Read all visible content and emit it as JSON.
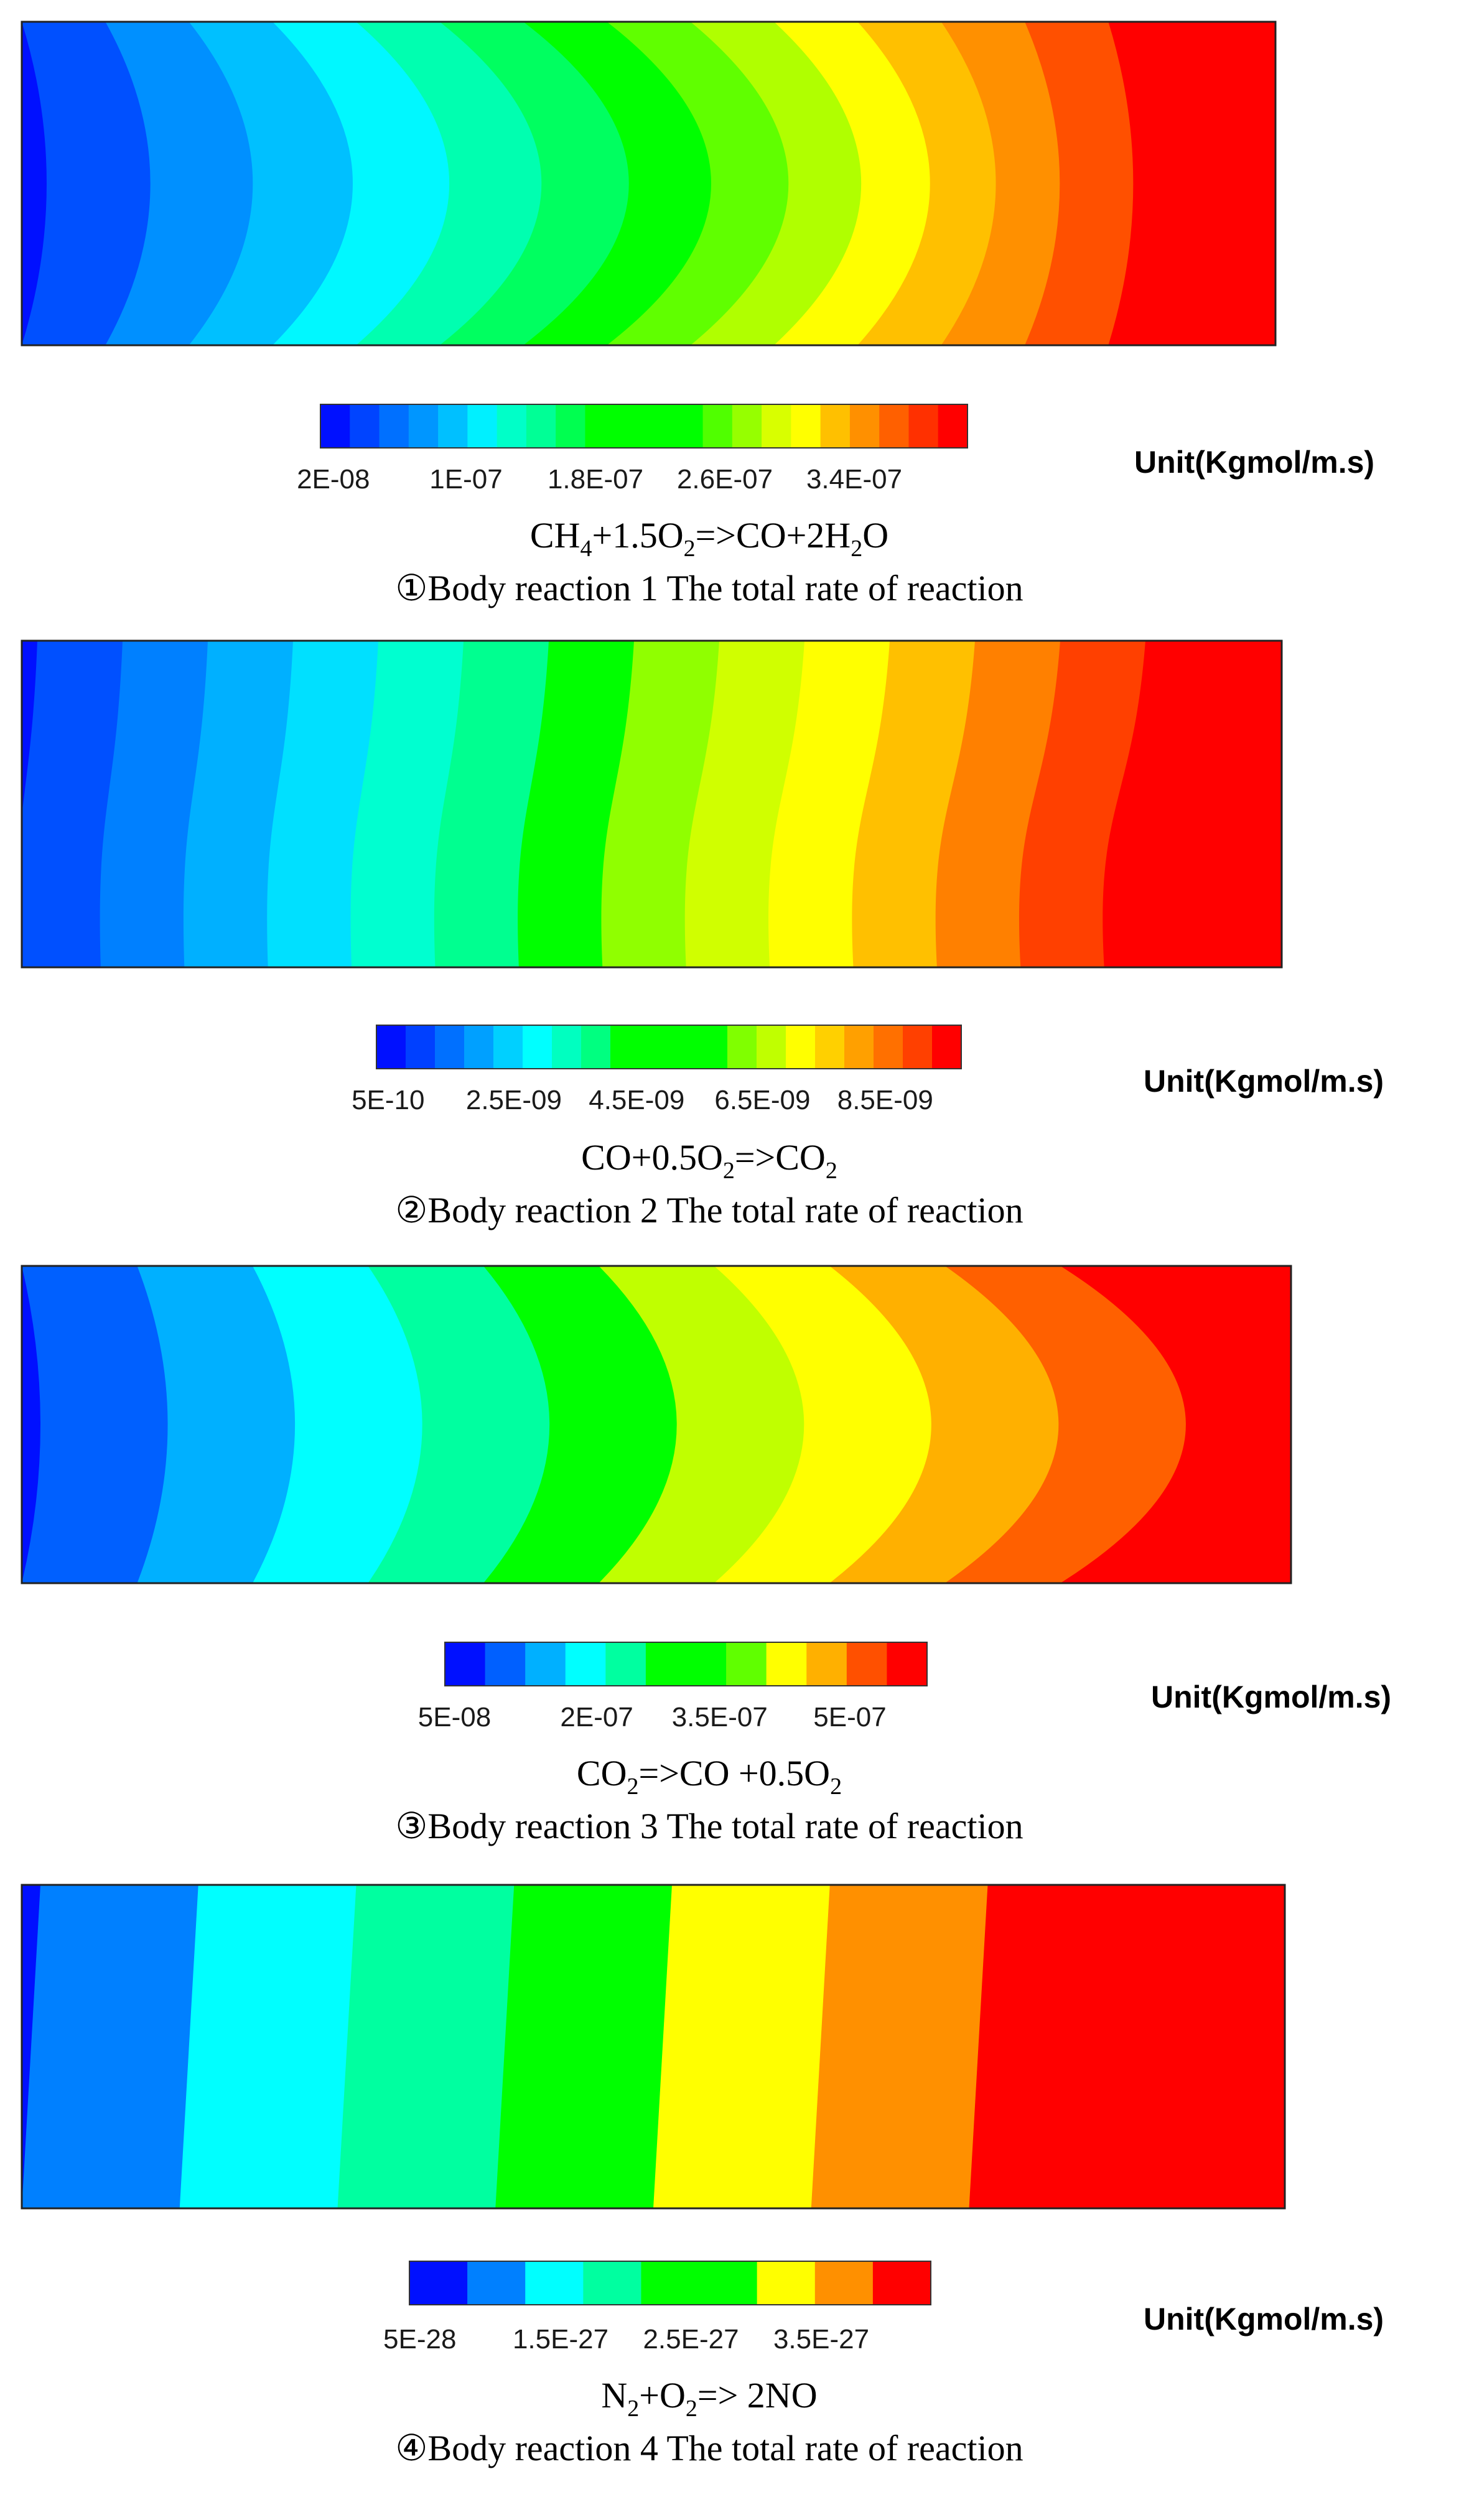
{
  "panels": [
    {
      "id": 1,
      "equation": [
        "CH",
        {
          "sub": "4"
        },
        "+1.5O",
        {
          "sub": "2"
        },
        "=>CO+2H",
        {
          "sub": "2"
        },
        "O"
      ],
      "caption": "①Body reaction 1 The total rate of reaction",
      "unit": "Unit(Kgmol/m.s)",
      "legend_colors": [
        "#0010ff",
        "#0044ff",
        "#0070ff",
        "#0096ff",
        "#00c0ff",
        "#00f0ff",
        "#00ffc8",
        "#00ff96",
        "#00ff50",
        "#00ff00",
        "#00ff00",
        "#00ff00",
        "#00ff00",
        "#50ff00",
        "#96ff00",
        "#d8ff00",
        "#ffff00",
        "#ffc000",
        "#ff9000",
        "#ff6000",
        "#ff3000",
        "#ff0000"
      ],
      "tick_labels": [
        "2E-08",
        "1E-07",
        "1.8E-07",
        "2.6E-07",
        "3.4E-07"
      ],
      "field": {
        "type": "parabolic-bands",
        "colors": [
          "#0010ff",
          "#0050ff",
          "#0090ff",
          "#00c0ff",
          "#00f8ff",
          "#00ffb0",
          "#00ff60",
          "#00ff00",
          "#60ff00",
          "#b0ff00",
          "#ffff00",
          "#ffc000",
          "#ff9000",
          "#ff5000",
          "#ff0000"
        ]
      }
    },
    {
      "id": 2,
      "equation": [
        "CO+0.5O",
        {
          "sub": "2"
        },
        "=>CO",
        {
          "sub": "2"
        }
      ],
      "caption": "②Body reaction 2 The total rate of reaction",
      "unit": "Unit(Kgmol/m.s)",
      "legend_colors": [
        "#0010ff",
        "#0040ff",
        "#0070ff",
        "#00a0ff",
        "#00d0ff",
        "#00ffff",
        "#00ffc0",
        "#00ff80",
        "#00ff00",
        "#00ff00",
        "#00ff00",
        "#00ff00",
        "#80ff00",
        "#c0ff00",
        "#ffff00",
        "#ffd000",
        "#ffa000",
        "#ff7000",
        "#ff4000",
        "#ff0000"
      ],
      "tick_labels": [
        "5E-10",
        "2.5E-09",
        "4.5E-09",
        "6.5E-09",
        "8.5E-09"
      ],
      "field": {
        "type": "vertical-bands",
        "colors": [
          "#0010ff",
          "#0050ff",
          "#0080ff",
          "#00b0ff",
          "#00e0ff",
          "#00ffd0",
          "#00ff90",
          "#00ff00",
          "#90ff00",
          "#d0ff00",
          "#ffff00",
          "#ffc000",
          "#ff8000",
          "#ff4000",
          "#ff0000"
        ]
      }
    },
    {
      "id": 3,
      "equation": [
        "CO",
        {
          "sub": "2"
        },
        "=>CO +0.5O",
        {
          "sub": "2"
        }
      ],
      "caption": "③Body reaction 3 The total rate of reaction",
      "unit": "Unit(Kgmol/m.s)",
      "legend_colors": [
        "#0010ff",
        "#0060ff",
        "#00b0ff",
        "#00ffff",
        "#00ffa0",
        "#00ff00",
        "#00ff00",
        "#60ff00",
        "#ffff00",
        "#ffb000",
        "#ff5000",
        "#ff0000"
      ],
      "tick_labels": [
        "5E-08",
        "2E-07",
        "3.5E-07",
        "5E-07"
      ],
      "field": {
        "type": "wedge-bands",
        "colors": [
          "#0010ff",
          "#0060ff",
          "#00b0ff",
          "#00ffff",
          "#00ffa0",
          "#00ff00",
          "#c0ff00",
          "#ffff00",
          "#ffb000",
          "#ff6000",
          "#ff0000"
        ]
      }
    },
    {
      "id": 4,
      "equation": [
        "N",
        {
          "sub": "2"
        },
        "+O",
        {
          "sub": "2"
        },
        "=> 2NO"
      ],
      "caption": "④Body reaction 4 The total rate of reaction",
      "unit": "Unit(Kgmol/m.s)",
      "legend_colors": [
        "#0010ff",
        "#0080ff",
        "#00ffff",
        "#00ffa0",
        "#00ff00",
        "#00ff00",
        "#ffff00",
        "#ff9000",
        "#ff0000"
      ],
      "tick_labels": [
        "5E-28",
        "1.5E-27",
        "2.5E-27",
        "3.5E-27"
      ],
      "field": {
        "type": "straight-bands",
        "colors": [
          "#0010ff",
          "#0080ff",
          "#00ffff",
          "#00ffa0",
          "#00ff00",
          "#ffff00",
          "#ff9000",
          "#ff0000"
        ]
      }
    }
  ]
}
